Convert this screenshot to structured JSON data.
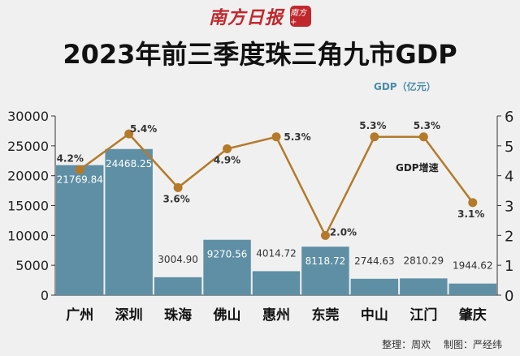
{
  "masthead": {
    "name": "南方日报",
    "seal": "南方+"
  },
  "colors": {
    "bar": "#5e8fa5",
    "line": "#b47a2a",
    "axis": "#333333"
  },
  "chart_data": {
    "type": "bar",
    "title": "2023年前三季度珠三角九市GDP",
    "categories": [
      "广州",
      "深圳",
      "珠海",
      "佛山",
      "惠州",
      "东莞",
      "中山",
      "江门",
      "肇庆"
    ],
    "ylabel": "GDP（亿元）",
    "ylim": [
      0,
      30000
    ],
    "yticks": [
      0,
      5000,
      10000,
      15000,
      20000,
      25000,
      30000
    ],
    "y2lim": [
      0,
      6
    ],
    "y2ticks": [
      0,
      1,
      2,
      3,
      4,
      5,
      6
    ],
    "series": [
      {
        "type": "bar",
        "values": [
          21769.84,
          24468.25,
          3004.9,
          9270.56,
          4014.72,
          8118.72,
          2744.63,
          2810.29,
          1944.62
        ],
        "labels": [
          "21769.84",
          "24468.25",
          "3004.90",
          "9270.56",
          "4014.72",
          "8118.72",
          "2744.63",
          "2810.29",
          "1944.62"
        ]
      },
      {
        "type": "line",
        "name": "GDP增速",
        "axis": "right",
        "values": [
          4.2,
          5.4,
          3.6,
          4.9,
          5.3,
          2.0,
          5.3,
          5.3,
          3.1
        ],
        "labels": [
          "4.2%",
          "5.4%",
          "3.6%",
          "4.9%",
          "5.3%",
          "2.0%",
          "5.3%",
          "5.3%",
          "3.1%"
        ]
      }
    ]
  },
  "credits": {
    "compiler": "整理：周欢",
    "designer": "制图：严经纬"
  }
}
